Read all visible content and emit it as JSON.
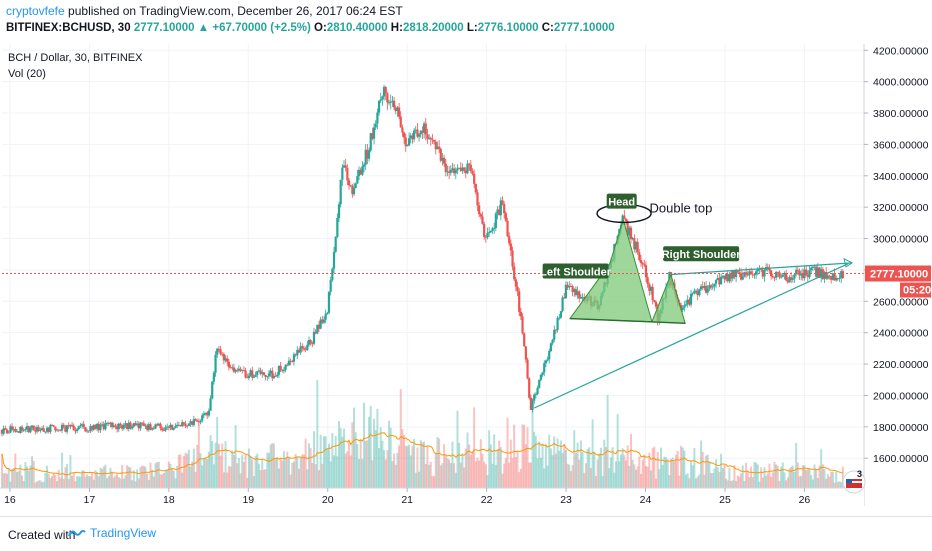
{
  "header": {
    "author": "cryptovfefe",
    "published_text": "published on TradingView.com, December 26, 2017 06:24 EST",
    "symbol": "BITFINEX:BCHUSD, 30",
    "last": "2777.10000",
    "arrow": "▲",
    "change": "+67.70000 (+2.5%)",
    "o_label": "O:",
    "o_value": "2810.40000",
    "h_label": "H:",
    "h_value": "2818.20000",
    "l_label": "L:",
    "l_value": "2776.10000",
    "c_label": "C:",
    "c_value": "2777.10000"
  },
  "legend": {
    "series_title": "BCH / Dollar, 30, BITFINEX",
    "volume_title": "Vol (20)"
  },
  "badges": {
    "last_price": "2777.10000",
    "countdown": "05:20",
    "flag_count": "3"
  },
  "annotations": {
    "head": "Head",
    "double_top": "Double top",
    "left_shoulder": "Left Shoulder",
    "right_shoulder": "Right Shoulder"
  },
  "footer": {
    "created_with": "Created with",
    "brand": "TradingView"
  },
  "colors": {
    "up": "#26a69a",
    "down": "#ef5350",
    "pattern_fill": "#7fc97a",
    "trendline": "#26a69a",
    "vol_ma": "#ff9800",
    "last_price": "#ef5350"
  },
  "chart_data": {
    "type": "candlestick",
    "title": "BCH / Dollar, 30, BITFINEX",
    "interval": "30",
    "x_ticks": [
      "16",
      "17",
      "18",
      "19",
      "20",
      "21",
      "22",
      "23",
      "24",
      "25",
      "26"
    ],
    "y_ticks": [
      1600,
      1800,
      2000,
      2200,
      2400,
      2600,
      2800,
      3000,
      3200,
      3400,
      3600,
      3800,
      4000,
      4200
    ],
    "y_tick_labels": [
      "1600.00000",
      "1800.00000",
      "2000.00000",
      "2200.00000",
      "2400.00000",
      "2600.00000",
      "2800.00000",
      "3000.00000",
      "3200.00000",
      "3400.00000",
      "3600.00000",
      "3800.00000",
      "4000.00000",
      "4200.00000"
    ],
    "ylim": [
      1410,
      4240
    ],
    "xlim": [
      15.9,
      26.75
    ],
    "last_price": 2777.1,
    "price_path": [
      [
        15.9,
        1780
      ],
      [
        16.5,
        1790
      ],
      [
        17.0,
        1795
      ],
      [
        17.5,
        1810
      ],
      [
        18.0,
        1795
      ],
      [
        18.3,
        1830
      ],
      [
        18.5,
        1880
      ],
      [
        18.6,
        2280
      ],
      [
        18.9,
        2140
      ],
      [
        19.3,
        2130
      ],
      [
        19.5,
        2210
      ],
      [
        19.8,
        2350
      ],
      [
        20.0,
        2550
      ],
      [
        20.1,
        3050
      ],
      [
        20.2,
        3500
      ],
      [
        20.3,
        3300
      ],
      [
        20.5,
        3550
      ],
      [
        20.7,
        3960
      ],
      [
        20.9,
        3790
      ],
      [
        21.0,
        3600
      ],
      [
        21.2,
        3700
      ],
      [
        21.5,
        3440
      ],
      [
        21.8,
        3450
      ],
      [
        21.9,
        3140
      ],
      [
        22.0,
        2990
      ],
      [
        22.2,
        3230
      ],
      [
        22.4,
        2600
      ],
      [
        22.5,
        2200
      ],
      [
        22.55,
        1920
      ],
      [
        22.75,
        2220
      ],
      [
        22.9,
        2500
      ],
      [
        23.0,
        2700
      ],
      [
        23.2,
        2620
      ],
      [
        23.4,
        2580
      ],
      [
        23.55,
        2820
      ],
      [
        23.7,
        3140
      ],
      [
        23.85,
        2980
      ],
      [
        24.0,
        2790
      ],
      [
        24.15,
        2500
      ],
      [
        24.3,
        2760
      ],
      [
        24.45,
        2510
      ],
      [
        24.6,
        2640
      ],
      [
        24.85,
        2710
      ],
      [
        25.0,
        2760
      ],
      [
        25.3,
        2770
      ],
      [
        25.5,
        2790
      ],
      [
        25.7,
        2740
      ],
      [
        25.9,
        2770
      ],
      [
        26.1,
        2790
      ],
      [
        26.3,
        2760
      ],
      [
        26.5,
        2777
      ]
    ],
    "volume": {
      "name": "Vol (20)",
      "profile": [
        [
          15.9,
          0.25
        ],
        [
          17.0,
          0.25
        ],
        [
          18.0,
          0.3
        ],
        [
          18.5,
          0.6
        ],
        [
          19.0,
          0.45
        ],
        [
          19.5,
          0.55
        ],
        [
          20.0,
          0.8
        ],
        [
          20.4,
          1.0
        ],
        [
          20.8,
          0.8
        ],
        [
          21.2,
          0.6
        ],
        [
          21.6,
          0.55
        ],
        [
          22.0,
          0.6
        ],
        [
          22.5,
          0.75
        ],
        [
          23.0,
          0.5
        ],
        [
          23.5,
          0.6
        ],
        [
          24.0,
          0.45
        ],
        [
          24.5,
          0.5
        ],
        [
          25.0,
          0.3
        ],
        [
          25.5,
          0.3
        ],
        [
          26.0,
          0.28
        ],
        [
          26.5,
          0.25
        ]
      ]
    }
  }
}
